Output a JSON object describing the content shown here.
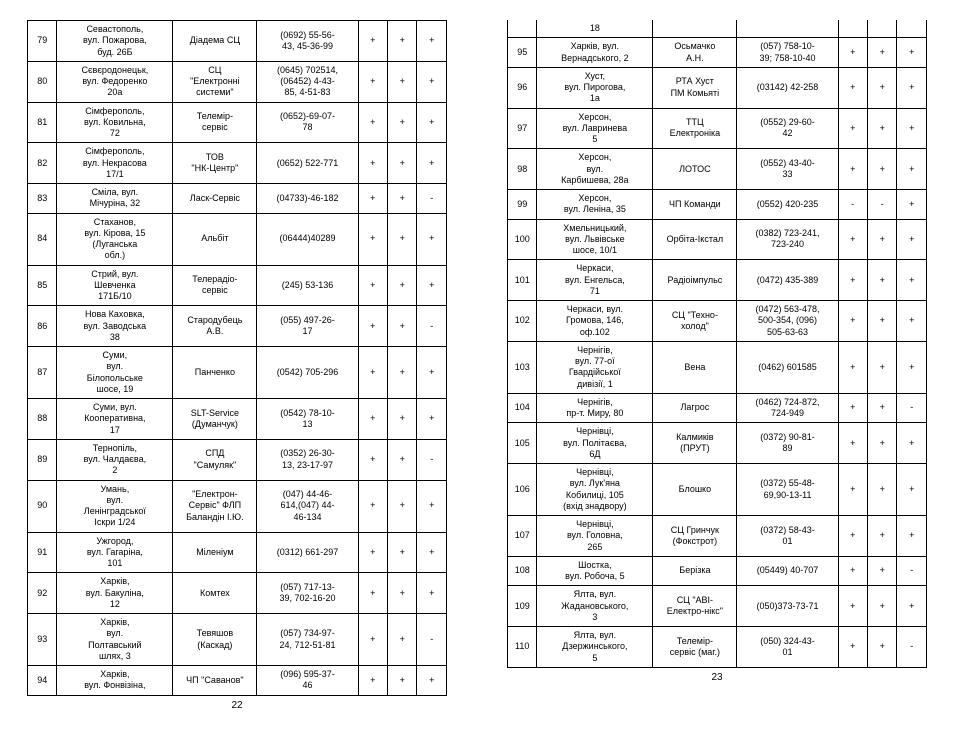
{
  "pages": [
    {
      "number": "22",
      "rows": [
        {
          "n": "79",
          "addr": "Севастополь,\nвул. Пожарова,\nбуд. 26Б",
          "name": "Діадема СЦ",
          "phone": "(0692) 55-56-\n43, 45-36-99",
          "f1": "+",
          "f2": "+",
          "f3": "+"
        },
        {
          "n": "80",
          "addr": "Сєвєродонецьк,\nвул. Федоренко\n20а",
          "name": "СЦ\n\"Електронні\nсистеми\"",
          "phone": "(0645) 702514,\n(06452) 4-43-\n85, 4-51-83",
          "f1": "+",
          "f2": "+",
          "f3": "+"
        },
        {
          "n": "81",
          "addr": "Сімферополь,\nвул. Ковильна,\n72",
          "name": "Телемір-\nсервіс",
          "phone": "(0652)-69-07-\n78",
          "f1": "+",
          "f2": "+",
          "f3": "+"
        },
        {
          "n": "82",
          "addr": "Сімферополь,\nвул. Некрасова\n17/1",
          "name": "ТОВ\n\"НК-Центр\"",
          "phone": "(0652) 522-771",
          "f1": "+",
          "f2": "+",
          "f3": "+"
        },
        {
          "n": "83",
          "addr": "Сміла, вул.\nМічуріна, 32",
          "name": "Ласк-Сервіс",
          "phone": "(04733)-46-182",
          "f1": "+",
          "f2": "+",
          "f3": "-"
        },
        {
          "n": "84",
          "addr": "Стаханов,\nвул. Кірова, 15\n(Луганська\nобл.)",
          "name": "Альбіт",
          "phone": "(06444)40289",
          "f1": "+",
          "f2": "+",
          "f3": "+"
        },
        {
          "n": "85",
          "addr": "Стрий, вул.\nШевченка\n171Б/10",
          "name": "Телерадіо-\nсервіс",
          "phone": "(245) 53-136",
          "f1": "+",
          "f2": "+",
          "f3": "+"
        },
        {
          "n": "86",
          "addr": "Нова Каховка,\nвул. Заводська\n38",
          "name": "Стародубець\nА.В.",
          "phone": "(055) 497-26-\n17",
          "f1": "+",
          "f2": "+",
          "f3": "-"
        },
        {
          "n": "87",
          "addr": "Суми,\nвул.\nБілопольське\nшосе, 19",
          "name": "Панченко",
          "phone": "(0542) 705-296",
          "f1": "+",
          "f2": "+",
          "f3": "+"
        },
        {
          "n": "88",
          "addr": "Суми, вул.\nКооперативна,\n17",
          "name": "SLT-Service\n(Думанчук)",
          "phone": "(0542) 78-10-\n13",
          "f1": "+",
          "f2": "+",
          "f3": "+"
        },
        {
          "n": "89",
          "addr": "Тернопіль,\nвул. Чалдаєва,\n2",
          "name": "СПД\n\"Самуляк\"",
          "phone": "(0352) 26-30-\n13, 23-17-97",
          "f1": "+",
          "f2": "+",
          "f3": "-"
        },
        {
          "n": "90",
          "addr": "Умань,\nвул.\nЛенінградської\nІскри 1/24",
          "name": "\"Електрон-\nСервіс\" ФЛП\nБаландін І.Ю.",
          "phone": "(047) 44-46-\n614,(047) 44-\n46-134",
          "f1": "+",
          "f2": "+",
          "f3": "+"
        },
        {
          "n": "91",
          "addr": "Ужгород,\nвул. Гагаріна,\n101",
          "name": "Міленіум",
          "phone": "(0312) 661-297",
          "f1": "+",
          "f2": "+",
          "f3": "+"
        },
        {
          "n": "92",
          "addr": "Харків,\nвул. Бакуліна,\n12",
          "name": "Комтех",
          "phone": "(057) 717-13-\n39, 702-16-20",
          "f1": "+",
          "f2": "+",
          "f3": "+"
        },
        {
          "n": "93",
          "addr": "Харків,\nвул.\nПолтавський\nшлях, 3",
          "name": "Тевяшов\n(Каскад)",
          "phone": "(057) 734-97-\n24, 712-51-81",
          "f1": "+",
          "f2": "+",
          "f3": "-"
        },
        {
          "n": "94",
          "addr": "Харків,\nвул. Фонвізіна,",
          "name": "ЧП \"Саванов\"",
          "phone": "(096) 595-37-\n46",
          "f1": "+",
          "f2": "+",
          "f3": "+"
        }
      ]
    },
    {
      "number": "23",
      "continuation": {
        "addr": "18"
      },
      "rows": [
        {
          "n": "95",
          "addr": "Харків, вул.\nВернадського, 2",
          "name": "Осьмачко\nА.Н.",
          "phone": "(057) 758-10-\n39; 758-10-40",
          "f1": "+",
          "f2": "+",
          "f3": "+"
        },
        {
          "n": "96",
          "addr": "Хуст,\nвул. Пирогова,\n1a",
          "name": "РТА Хуст\nПМ Комьяті",
          "phone": "(03142) 42-258",
          "f1": "+",
          "f2": "+",
          "f3": "+"
        },
        {
          "n": "97",
          "addr": "Херсон,\nвул. Лавринева\n5",
          "name": "ТТЦ\nЕлектроніка",
          "phone": "(0552) 29-60-\n42",
          "f1": "+",
          "f2": "+",
          "f3": "+"
        },
        {
          "n": "98",
          "addr": "Херсон,\nвул.\nКарбишева, 28а",
          "name": "ЛОТОС",
          "phone": "(0552) 43-40-\n33",
          "f1": "+",
          "f2": "+",
          "f3": "+"
        },
        {
          "n": "99",
          "addr": "Херсон,\nвул. Леніна, 35",
          "name": "ЧП Команди",
          "phone": "(0552) 420-235",
          "f1": "-",
          "f2": "-",
          "f3": "+"
        },
        {
          "n": "100",
          "addr": "Хмельницький,\nвул. Львівське\nшосе, 10/1",
          "name": "Орбіта-Ікстал",
          "phone": "(0382) 723-241,\n723-240",
          "f1": "+",
          "f2": "+",
          "f3": "+"
        },
        {
          "n": "101",
          "addr": "Черкаси,\nвул. Енгельса,\n71",
          "name": "Радіоімпульс",
          "phone": "(0472) 435-389",
          "f1": "+",
          "f2": "+",
          "f3": "+"
        },
        {
          "n": "102",
          "addr": "Черкаси, вул.\nГромова, 146,\nоф.102",
          "name": "СЦ \"Техно-\nхолод\"",
          "phone": "(0472) 563-478,\n500-354, (096)\n505-63-63",
          "f1": "+",
          "f2": "+",
          "f3": "+"
        },
        {
          "n": "103",
          "addr": "Чернігів,\nвул. 77-ої\nГвардійської\nдивізії, 1",
          "name": "Вена",
          "phone": "(0462) 601585",
          "f1": "+",
          "f2": "+",
          "f3": "+"
        },
        {
          "n": "104",
          "addr": "Чернігів,\nпр-т. Миру, 80",
          "name": "Лагрос",
          "phone": "(0462) 724-872,\n724-949",
          "f1": "+",
          "f2": "+",
          "f3": "-"
        },
        {
          "n": "105",
          "addr": "Чернівці,\nвул. Політаєва,\n6Д",
          "name": "Калмиків\n(ПРУТ)",
          "phone": "(0372) 90-81-\n89",
          "f1": "+",
          "f2": "+",
          "f3": "+"
        },
        {
          "n": "106",
          "addr": "Чернівці,\nвул. Лук'яна\nКобилиці, 105\n(вхід знадвору)",
          "name": "Блошко",
          "phone": "(0372) 55-48-\n69,90-13-11",
          "f1": "+",
          "f2": "+",
          "f3": "+"
        },
        {
          "n": "107",
          "addr": "Чернівці,\nвул. Головна,\n265",
          "name": "СЦ Гринчук\n(Фокстрот)",
          "phone": "(0372) 58-43-\n01",
          "f1": "+",
          "f2": "+",
          "f3": "+"
        },
        {
          "n": "108",
          "addr": "Шостка,\nвул. Робоча, 5",
          "name": "Берізка",
          "phone": "(05449) 40-707",
          "f1": "+",
          "f2": "+",
          "f3": "-"
        },
        {
          "n": "109",
          "addr": "Ялта, вул.\nЖадановського,\n3",
          "name": "СЦ \"АВІ-\nЕлектро-нікс\"",
          "phone": "(050)373-73-71",
          "f1": "+",
          "f2": "+",
          "f3": "+"
        },
        {
          "n": "110",
          "addr": "Ялта, вул.\nДзержинського,\n5",
          "name": "Телемір-\nсервіс (маг.)",
          "phone": "(050) 324-43-\n01",
          "f1": "+",
          "f2": "+",
          "f3": "-"
        }
      ]
    }
  ]
}
